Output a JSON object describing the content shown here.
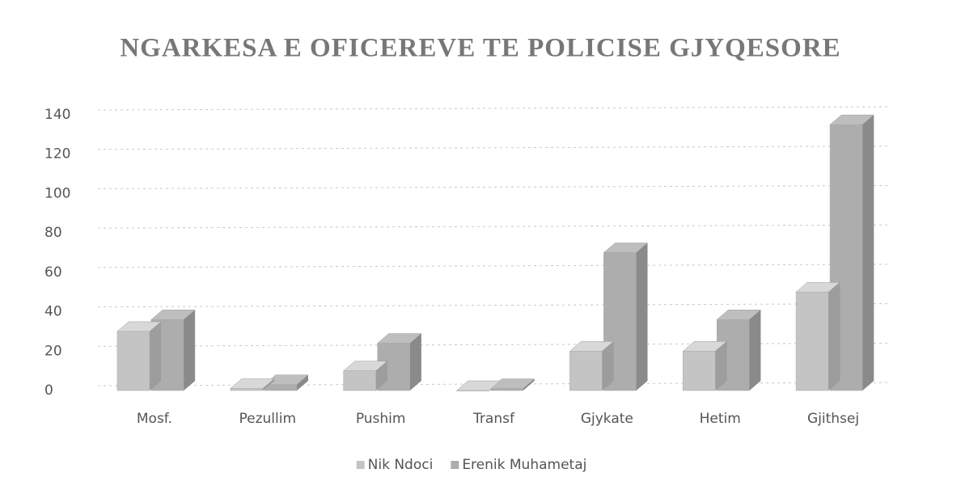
{
  "chart_data": {
    "type": "bar",
    "title": "NGARKESA E OFICEREVE TE POLICISE GJYQESORE",
    "categories": [
      "Mosf.",
      "Pezullim",
      "Pushim",
      "Transf",
      "Gjykate",
      "Hetim",
      "Gjithsej"
    ],
    "series": [
      {
        "name": "Nik Ndoci",
        "color": "#c4c4c4",
        "values": [
          30,
          1,
          10,
          0,
          20,
          20,
          50
        ]
      },
      {
        "name": "Erenik Muhametaj",
        "color": "#adadad",
        "values": [
          36,
          3,
          24,
          1,
          70,
          36,
          135
        ]
      }
    ],
    "ylim": [
      0,
      140
    ],
    "yticks": [
      0,
      20,
      40,
      60,
      80,
      100,
      120,
      140
    ],
    "grid": true,
    "legend": "bottom"
  }
}
